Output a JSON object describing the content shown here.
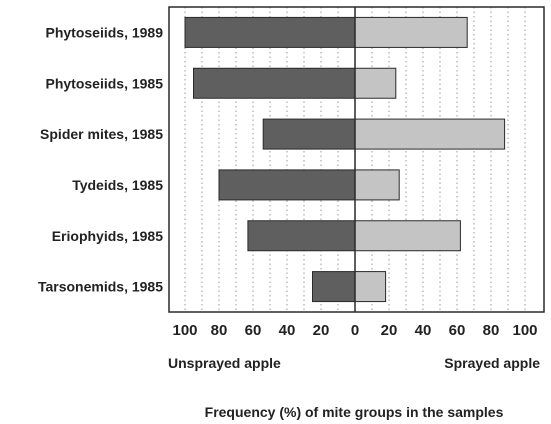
{
  "chart_data": {
    "type": "bar",
    "orientation": "horizontal-diverging",
    "categories": [
      "Phytoseiids, 1989",
      "Phytoseiids, 1985",
      "Spider mites, 1985",
      "Tydeids, 1985",
      "Eriophyids, 1985",
      "Tarsonemids, 1985"
    ],
    "series": [
      {
        "name": "Unsprayed apple",
        "values": [
          100,
          95,
          54,
          80,
          63,
          25
        ],
        "color": "#5f5f5f",
        "side": "left"
      },
      {
        "name": "Sprayed apple",
        "values": [
          66,
          24,
          88,
          26,
          62,
          18
        ],
        "color": "#c4c4c4",
        "side": "right"
      }
    ],
    "x_ticks_left": [
      "100",
      "80",
      "60",
      "40",
      "20",
      "0"
    ],
    "x_ticks_right": [
      "20",
      "40",
      "60",
      "80",
      "100"
    ],
    "xlim": [
      -100,
      100
    ],
    "xlabel": "Frequency (%) of mite groups in the samples",
    "title": "",
    "grid": "vertical dotted",
    "legend": "below axis: left and right labels"
  }
}
